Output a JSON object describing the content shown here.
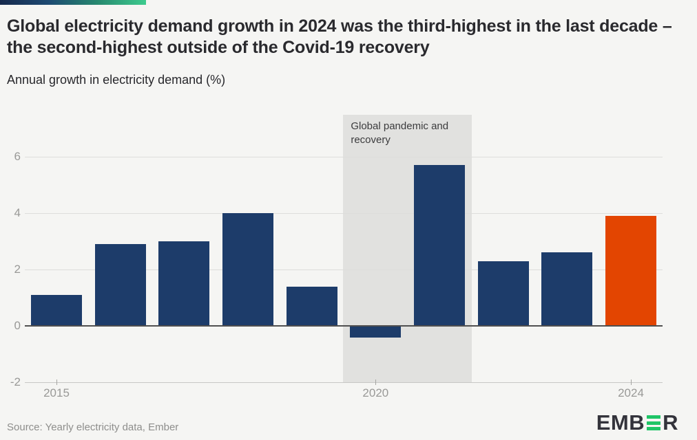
{
  "page": {
    "title": "Global electricity demand growth in 2024 was the third-highest in the last decade – the second-highest outside of the Covid-19 recovery",
    "subtitle": "Annual growth in electricity demand (%)",
    "source": "Source: Yearly electricity data, Ember",
    "brand": {
      "prefix": "EMB",
      "suffix": "R",
      "green": "#1fc567",
      "dark": "#33333b"
    },
    "accent_colors": [
      "#16294c",
      "#1d4a72",
      "#27886f",
      "#3dcb8e"
    ]
  },
  "chart_data": {
    "type": "bar",
    "categories": [
      "2015",
      "2016",
      "2017",
      "2018",
      "2019",
      "2020",
      "2021",
      "2022",
      "2023",
      "2024"
    ],
    "values": [
      1.1,
      2.9,
      3.0,
      4.0,
      1.4,
      -0.4,
      5.7,
      2.3,
      2.6,
      3.9
    ],
    "title": "Annual growth in electricity demand (%)",
    "xlabel": "",
    "ylabel": "",
    "ylim": [
      -2,
      7.5
    ],
    "y_ticks": [
      6,
      4,
      2,
      0,
      -2
    ],
    "x_tick_labels": {
      "0": "2015",
      "5": "2020",
      "9": "2024"
    },
    "grid": true,
    "legend": false,
    "highlight_index": 9,
    "colors": {
      "bar_default": "#1d3c6a",
      "bar_highlight": "#e34501",
      "band": "#e1e1df",
      "gridline": "#dddddb",
      "zero_line": "#4f4f4f",
      "axis_text": "#999997"
    },
    "annotation": {
      "label": "Global pandemic and recovery",
      "band_start_category": "2020",
      "band_end_category": "2021"
    }
  }
}
